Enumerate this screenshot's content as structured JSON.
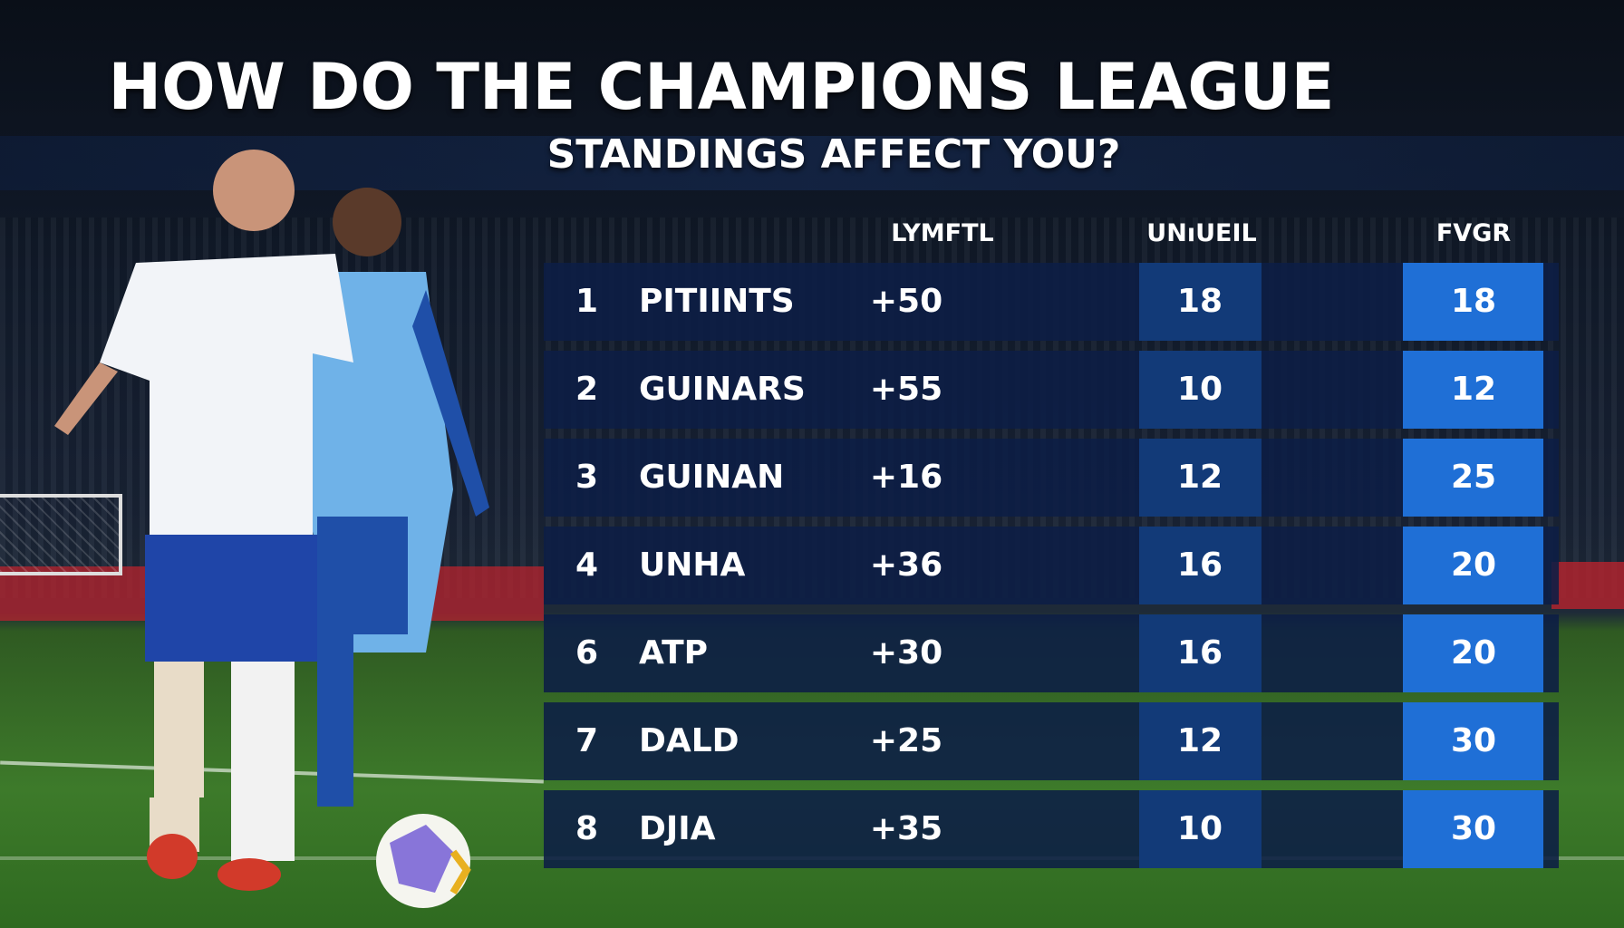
{
  "title_line1": "HOW DO THE CHAMPIONS LEAGUE",
  "title_line2": "STANDINGS AFFECT YOU?",
  "columns": [
    "LYMFTL",
    "UNıUEIL",
    "FVGR"
  ],
  "rows": [
    {
      "rank": "1",
      "name": "PITIINTS",
      "diff": "+50",
      "col2": "18",
      "col3": "18"
    },
    {
      "rank": "2",
      "name": "GUINARS",
      "diff": "+55",
      "col2": "10",
      "col3": "12"
    },
    {
      "rank": "3",
      "name": "GUINAN",
      "diff": "+16",
      "col2": "12",
      "col3": "25"
    },
    {
      "rank": "4",
      "name": "UNHA",
      "diff": "+36",
      "col2": "16",
      "col3": "20"
    },
    {
      "rank": "6",
      "name": "ATP",
      "diff": "+30",
      "col2": "16",
      "col3": "20"
    },
    {
      "rank": "7",
      "name": "DALD",
      "diff": "+25",
      "col2": "12",
      "col3": "30"
    },
    {
      "rank": "8",
      "name": "DJIA",
      "diff": "+35",
      "col2": "10",
      "col3": "30"
    }
  ],
  "colors": {
    "row_bg": "#0c1e46",
    "mid_cell": "#123a78",
    "accent_cell": "#1f6fd6",
    "diff_text": "#7fb8f0"
  }
}
